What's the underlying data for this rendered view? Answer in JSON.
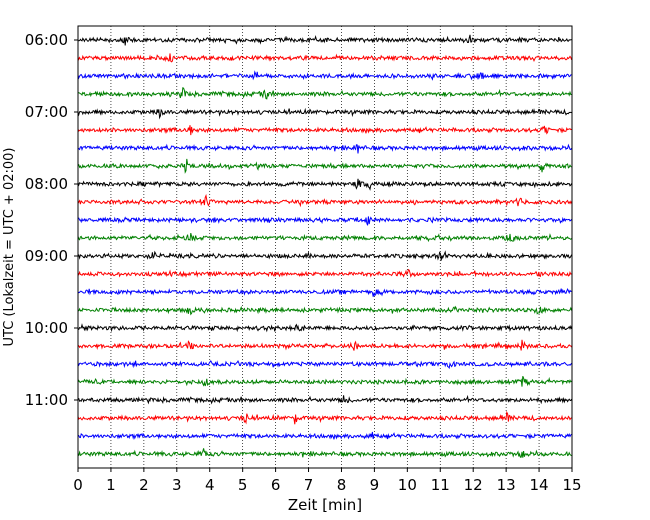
{
  "chart_data": {
    "type": "line",
    "subtype": "helicorder",
    "xlabel": "Zeit  [min]",
    "ylabel": "UTC (Lokalzeit = UTC + 02:00)",
    "xlim": [
      0,
      15
    ],
    "x_ticks": [
      "0",
      "1",
      "2",
      "3",
      "4",
      "5",
      "6",
      "7",
      "8",
      "9",
      "10",
      "11",
      "12",
      "13",
      "14",
      "15"
    ],
    "x_grid": true,
    "trace_interval_min": 15,
    "y_ticks": [
      "06:00",
      "07:00",
      "08:00",
      "09:00",
      "10:00",
      "11:00"
    ],
    "color_cycle": [
      "#000000",
      "#ff0000",
      "#0000ff",
      "#008000"
    ],
    "series": [
      {
        "start": "06:00",
        "color": "#000000"
      },
      {
        "start": "06:15",
        "color": "#ff0000"
      },
      {
        "start": "06:30",
        "color": "#0000ff"
      },
      {
        "start": "06:45",
        "color": "#008000"
      },
      {
        "start": "07:00",
        "color": "#000000"
      },
      {
        "start": "07:15",
        "color": "#ff0000"
      },
      {
        "start": "07:30",
        "color": "#0000ff"
      },
      {
        "start": "07:45",
        "color": "#008000"
      },
      {
        "start": "08:00",
        "color": "#000000"
      },
      {
        "start": "08:15",
        "color": "#ff0000"
      },
      {
        "start": "08:30",
        "color": "#0000ff"
      },
      {
        "start": "08:45",
        "color": "#008000"
      },
      {
        "start": "09:00",
        "color": "#000000"
      },
      {
        "start": "09:15",
        "color": "#ff0000"
      },
      {
        "start": "09:30",
        "color": "#0000ff"
      },
      {
        "start": "09:45",
        "color": "#008000"
      },
      {
        "start": "10:00",
        "color": "#000000"
      },
      {
        "start": "10:15",
        "color": "#ff0000"
      },
      {
        "start": "10:30",
        "color": "#0000ff"
      },
      {
        "start": "10:45",
        "color": "#008000"
      },
      {
        "start": "11:00",
        "color": "#000000"
      },
      {
        "start": "11:15",
        "color": "#ff0000"
      },
      {
        "start": "11:30",
        "color": "#0000ff"
      },
      {
        "start": "11:45",
        "color": "#008000"
      }
    ],
    "spikes": [
      {
        "trace": 0,
        "x": [
          1.45,
          11.9
        ]
      },
      {
        "trace": 1,
        "x": [
          2.8
        ]
      },
      {
        "trace": 2,
        "x": [
          5.4,
          12.2
        ]
      },
      {
        "trace": 3,
        "x": [
          3.2,
          5.7
        ]
      },
      {
        "trace": 4,
        "x": [
          2.5
        ]
      },
      {
        "trace": 5,
        "x": [
          3.4,
          14.2
        ]
      },
      {
        "trace": 6,
        "x": [
          8.5
        ]
      },
      {
        "trace": 7,
        "x": [
          3.3,
          14.1
        ]
      },
      {
        "trace": 8,
        "x": [
          8.5,
          8.85
        ]
      },
      {
        "trace": 9,
        "x": [
          3.9,
          13.4
        ]
      },
      {
        "trace": 10,
        "x": [
          8.8
        ]
      },
      {
        "trace": 11,
        "x": [
          3.4,
          13.1
        ]
      },
      {
        "trace": 12,
        "x": [
          2.3,
          11.0
        ]
      },
      {
        "trace": 13,
        "x": [
          10.0,
          14.0
        ]
      },
      {
        "trace": 14,
        "x": [
          9.0
        ]
      },
      {
        "trace": 15,
        "x": [
          3.4,
          14.0
        ]
      },
      {
        "trace": 16,
        "x": [
          6.7
        ]
      },
      {
        "trace": 17,
        "x": [
          3.4,
          8.4,
          13.5
        ]
      },
      {
        "trace": 18,
        "x": [
          11.3
        ]
      },
      {
        "trace": 19,
        "x": [
          3.9,
          13.5
        ]
      },
      {
        "trace": 20,
        "x": [
          8.1
        ]
      },
      {
        "trace": 21,
        "x": [
          5.1,
          6.6,
          13.0
        ]
      },
      {
        "trace": 22,
        "x": [
          8.9
        ]
      },
      {
        "trace": 23,
        "x": [
          3.8,
          13.5
        ]
      }
    ]
  }
}
